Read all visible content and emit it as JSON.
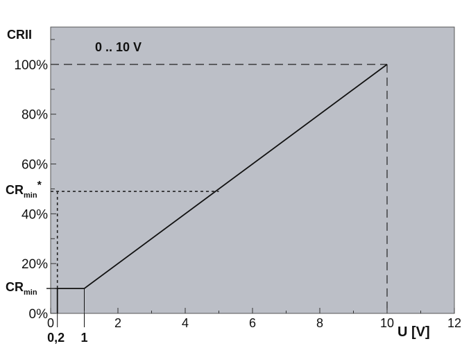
{
  "chart_data": {
    "type": "line",
    "y_axis_title": "CRII",
    "x_axis_title": "U [V]",
    "annotation": "0 .. 10 V",
    "xlim": [
      0,
      12
    ],
    "ylim": [
      0,
      115
    ],
    "x_ticks": [
      0,
      2,
      4,
      6,
      8,
      10,
      12
    ],
    "x_tick_labels": [
      "0",
      "2",
      "4",
      "6",
      "8",
      "10",
      "12"
    ],
    "y_ticks": [
      0,
      20,
      40,
      60,
      80,
      100
    ],
    "y_tick_labels": [
      "0%",
      "20%",
      "40%",
      "60%",
      "80%",
      "100%"
    ],
    "extra_x_labels": [
      {
        "x": 0.2,
        "text": "0,2"
      },
      {
        "x": 1,
        "text": "1"
      }
    ],
    "cr_min": {
      "y": 10,
      "label": "CR",
      "subscript": "min"
    },
    "cr_min_star": {
      "y": 49,
      "label": "CR",
      "subscript": "min",
      "suffix": "*"
    },
    "series": [
      {
        "values": [
          [
            0.2,
            0
          ],
          [
            0.2,
            10
          ],
          [
            1,
            10
          ],
          [
            10,
            100
          ]
        ]
      }
    ],
    "guides": {
      "cr_min_star_vertical_x": 0.2,
      "cr_min_star_horizontal_end_x": 5,
      "max_point": [
        10,
        100
      ]
    },
    "colors": {
      "plot_background": "#bcbfc7",
      "line": "#111111",
      "guide": "#222222"
    },
    "grid": false
  }
}
